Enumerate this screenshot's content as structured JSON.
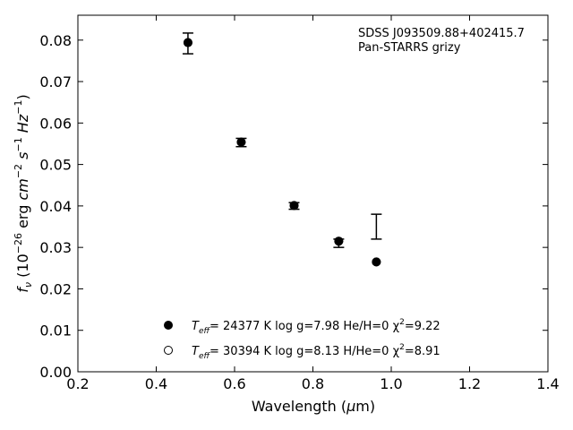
{
  "chart_data": {
    "type": "scatter",
    "xlim": [
      0.2,
      1.4
    ],
    "ylim": [
      0.0,
      0.086
    ],
    "x_ticks": [
      "0.2",
      "0.4",
      "0.6",
      "0.8",
      "1.0",
      "1.2",
      "1.4"
    ],
    "y_ticks": [
      "0.00",
      "0.01",
      "0.02",
      "0.03",
      "0.04",
      "0.05",
      "0.06",
      "0.07",
      "0.08"
    ],
    "xlabel": "Wavelength (μm)",
    "ylabel": "fν (10⁻²⁶ erg cm⁻² s⁻¹ Hz⁻¹)",
    "annotation": {
      "line1": "SDSS J093509.88+402415.7",
      "line2": "Pan-STARRS grizy"
    },
    "observed": {
      "x": [
        0.481,
        0.617,
        0.752,
        0.866,
        0.962
      ],
      "y": [
        0.0792,
        0.0553,
        0.04,
        0.031,
        0.035
      ],
      "yerr": [
        0.0025,
        0.001,
        0.0008,
        0.001,
        0.003
      ]
    },
    "series": [
      {
        "marker": "filled-circle",
        "x": [
          0.481,
          0.617,
          0.752,
          0.866,
          0.962
        ],
        "y": [
          0.0794,
          0.0554,
          0.0401,
          0.0315,
          0.0265
        ]
      },
      {
        "marker": "open-circle",
        "x": [
          0.481,
          0.617,
          0.752,
          0.866,
          0.962
        ],
        "y": [
          0.0794,
          0.0554,
          0.0401,
          0.0315,
          0.0265
        ]
      }
    ],
    "legend": [
      {
        "marker": "filled-circle",
        "teff": "T",
        "teff_sub": "eff",
        "text": "= 24377 K  log g=7.98  He/H=0  χ",
        "sup": "2",
        "tail": "=9.22"
      },
      {
        "marker": "open-circle",
        "teff": "T",
        "teff_sub": "eff",
        "text": "= 30394 K  log g=8.13  H/He=0  χ",
        "sup": "2",
        "tail": "=8.91"
      }
    ],
    "colors": {
      "marker": "#000000",
      "background": "#ffffff"
    },
    "grid": false,
    "legend_placement": "bottom-center"
  }
}
